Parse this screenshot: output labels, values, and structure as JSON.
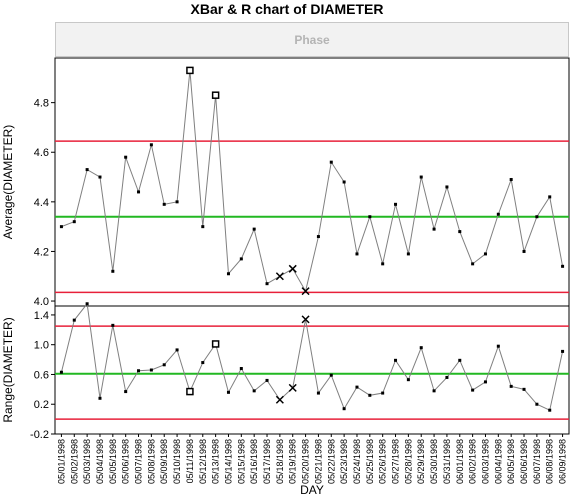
{
  "title": "XBar & R chart of DIAMETER",
  "phase_label": "Phase",
  "chart_data": [
    {
      "type": "line",
      "name": "xbar",
      "ylabel": "Average(DIAMETER)",
      "ylim": [
        3.98,
        4.98
      ],
      "yticks": [
        4.0,
        4.2,
        4.4,
        4.6,
        4.8
      ],
      "grid": false,
      "control_limits": {
        "ucl": 4.645,
        "center": 4.34,
        "lcl": 4.035
      },
      "values": [
        4.3,
        4.32,
        4.53,
        4.5,
        4.12,
        4.58,
        4.44,
        4.63,
        4.39,
        4.4,
        4.93,
        4.3,
        4.83,
        4.11,
        4.17,
        4.29,
        4.07,
        4.1,
        4.13,
        4.04,
        4.26,
        4.56,
        4.48,
        4.19,
        4.34,
        4.15,
        4.39,
        4.19,
        4.5,
        4.29,
        4.46,
        4.28,
        4.15,
        4.19,
        4.35,
        4.49,
        4.2,
        4.34,
        4.42,
        4.14
      ],
      "flag_square": [
        10,
        12
      ],
      "flag_x": [
        17,
        18,
        19
      ]
    },
    {
      "type": "line",
      "name": "range",
      "ylabel": "Range(DIAMETER)",
      "ylim": [
        -0.2,
        1.52
      ],
      "yticks": [
        -0.2,
        0.2,
        0.6,
        1.0,
        1.4
      ],
      "grid": false,
      "control_limits": {
        "ucl": 1.25,
        "center": 0.61,
        "lcl": 0.0
      },
      "values": [
        0.63,
        1.33,
        1.55,
        0.28,
        1.26,
        0.37,
        0.65,
        0.66,
        0.73,
        0.93,
        0.37,
        0.76,
        1.01,
        0.36,
        0.68,
        0.38,
        0.52,
        0.26,
        0.42,
        1.34,
        0.35,
        0.59,
        0.14,
        0.43,
        0.32,
        0.35,
        0.79,
        0.53,
        0.96,
        0.38,
        0.56,
        0.79,
        0.39,
        0.5,
        0.98,
        0.44,
        0.4,
        0.2,
        0.12,
        0.91
      ],
      "flag_square": [
        10,
        12
      ],
      "flag_x": [
        17,
        18,
        19
      ]
    }
  ],
  "x_axis": {
    "label": "DAY",
    "categories": [
      "05/01/1998",
      "05/02/1998",
      "05/03/1998",
      "05/04/1998",
      "05/05/1998",
      "05/06/1998",
      "05/07/1998",
      "05/08/1998",
      "05/09/1998",
      "05/10/1998",
      "05/11/1998",
      "05/12/1998",
      "05/13/1998",
      "05/14/1998",
      "05/15/1998",
      "05/16/1998",
      "05/17/1998",
      "05/18/1998",
      "05/19/1998",
      "05/20/1998",
      "05/21/1998",
      "05/22/1998",
      "05/23/1998",
      "05/24/1998",
      "05/25/1998",
      "05/26/1998",
      "05/27/1998",
      "05/28/1998",
      "05/29/1998",
      "05/30/1998",
      "05/31/1998",
      "06/01/1998",
      "06/02/1998",
      "06/03/1998",
      "06/04/1998",
      "06/05/1998",
      "06/06/1998",
      "06/07/1998",
      "06/08/1998",
      "06/09/1998"
    ]
  },
  "colors": {
    "limit": "#e8203a",
    "center": "#22b822",
    "series": "#808080",
    "marker": "#000000",
    "frame": "#000000"
  }
}
